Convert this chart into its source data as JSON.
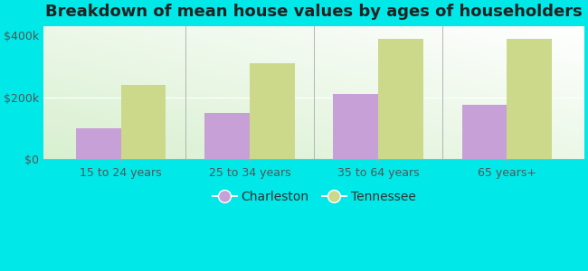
{
  "title": "Breakdown of mean house values by ages of householders",
  "categories": [
    "15 to 24 years",
    "25 to 34 years",
    "35 to 64 years",
    "65 years+"
  ],
  "charleston_values": [
    100000,
    148000,
    210000,
    175000
  ],
  "tennessee_values": [
    240000,
    310000,
    390000,
    390000
  ],
  "charleston_color": "#c8a0d8",
  "tennessee_color": "#ccd98a",
  "background_color": "#00e8e8",
  "ylabel_ticks": [
    0,
    200000,
    400000
  ],
  "ylabel_labels": [
    "$0",
    "$200k",
    "$400k"
  ],
  "ylim": [
    0,
    430000
  ],
  "bar_width": 0.35,
  "legend_charleston": "Charleston",
  "legend_tennessee": "Tennessee",
  "title_fontsize": 13,
  "tick_fontsize": 9,
  "legend_fontsize": 10
}
